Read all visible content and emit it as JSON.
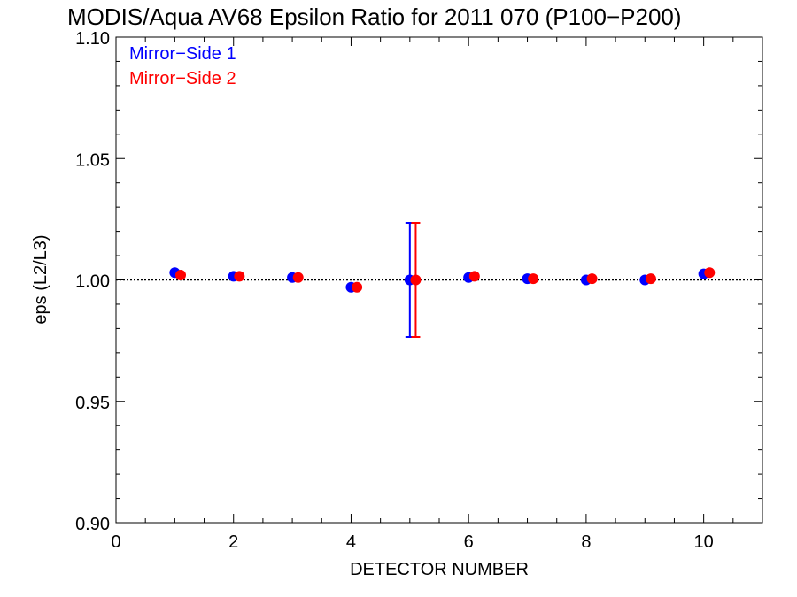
{
  "chart_data": {
    "type": "scatter",
    "title": "MODIS/Aqua AV68 Epsilon Ratio for 2011 070 (P100−P200)",
    "xlabel": "DETECTOR NUMBER",
    "ylabel": "eps (L2/L3)",
    "xlim": [
      0,
      11
    ],
    "ylim": [
      0.9,
      1.1
    ],
    "xticks": [
      0,
      2,
      4,
      6,
      8,
      10
    ],
    "xtick_labels": [
      "0",
      "2",
      "4",
      "6",
      "8",
      "10"
    ],
    "yticks": [
      0.9,
      0.95,
      1.0,
      1.05,
      1.1
    ],
    "ytick_labels": [
      "0.90",
      "0.95",
      "1.00",
      "1.05",
      "1.10"
    ],
    "reference_line": 1.0,
    "legend_position": "top-left",
    "grid": false,
    "series": [
      {
        "name": "Mirror−Side 1",
        "color": "#0000ff",
        "x": [
          1,
          2,
          3,
          4,
          5,
          6,
          7,
          8,
          9,
          10
        ],
        "y": [
          1.003,
          1.0015,
          1.001,
          0.997,
          1.0,
          1.001,
          1.0005,
          1.0,
          1.0,
          1.0025
        ],
        "error_bar": {
          "x": 5,
          "low": 0.9765,
          "high": 1.0235
        }
      },
      {
        "name": "Mirror−Side 2",
        "color": "#ff0000",
        "x": [
          1.1,
          2.1,
          3.1,
          4.1,
          5.1,
          6.1,
          7.1,
          8.1,
          9.1,
          10.1
        ],
        "y": [
          1.002,
          1.0015,
          1.001,
          0.997,
          1.0,
          1.0015,
          1.0005,
          1.0005,
          1.0005,
          1.003
        ],
        "error_bar": {
          "x": 5.1,
          "low": 0.9765,
          "high": 1.0235
        }
      }
    ]
  }
}
